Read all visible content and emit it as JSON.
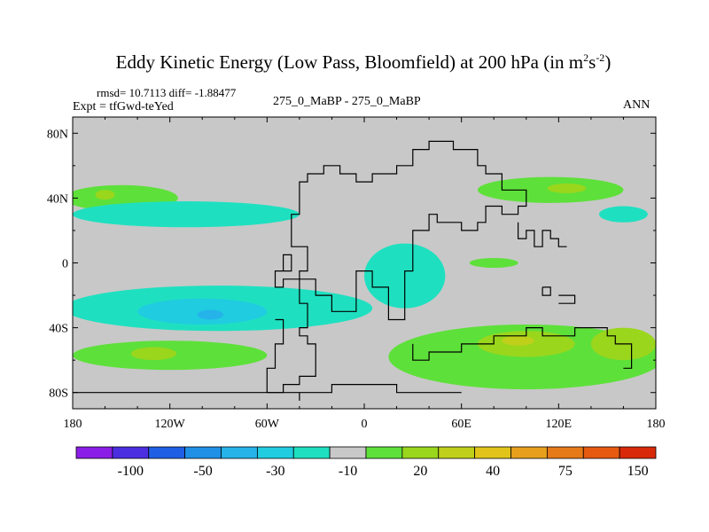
{
  "chart_data": {
    "type": "heatmap",
    "title": "Eddy Kinetic Energy (Low Pass, Bloomfield) at 200 hPa (in m",
    "title_sup1": "2",
    "title_mid": "s",
    "title_sup2": "-2",
    "title_end": ")",
    "stats": "rmsd= 10.7113 diff= -1.88477",
    "expt": "Expt = tfGwd-teYed",
    "case_label": "275_0_MaBP - 275_0_MaBP",
    "period": "ANN",
    "x_ticks": [
      "180",
      "120W",
      "60W",
      "0",
      "60E",
      "120E",
      "180"
    ],
    "x_tick_values": [
      -180,
      -120,
      -60,
      0,
      60,
      120,
      180
    ],
    "y_ticks": [
      "80N",
      "40N",
      "0",
      "40S",
      "80S"
    ],
    "y_tick_values": [
      80,
      40,
      0,
      -40,
      -80
    ],
    "xlim": [
      -180,
      180
    ],
    "ylim": [
      -90,
      90
    ],
    "colorbar": {
      "colors": [
        "#8a1ee6",
        "#4b2ee0",
        "#1f5fe6",
        "#1f90e6",
        "#25b3ea",
        "#20cce0",
        "#1ee0c0",
        "#c8c8c8",
        "#5ee03a",
        "#9ad61c",
        "#c0d01a",
        "#e0c41a",
        "#e6a01c",
        "#e67a18",
        "#e65a10",
        "#d82a0a"
      ],
      "labels": [
        "-100",
        "-50",
        "-30",
        "-10",
        "20",
        "40",
        "75",
        "150"
      ],
      "label_boundary_index": [
        2,
        4,
        6,
        8,
        10,
        12,
        14,
        16
      ]
    },
    "anomaly_regions": [
      {
        "cx": -150,
        "cy": 40,
        "rx": 35,
        "ry": 8,
        "level": 8
      },
      {
        "cx": -160,
        "cy": 42,
        "rx": 6,
        "ry": 3,
        "level": 9
      },
      {
        "cx": -110,
        "cy": 30,
        "rx": 70,
        "ry": 8,
        "level": 6
      },
      {
        "cx": -90,
        "cy": -28,
        "rx": 95,
        "ry": 14,
        "level": 6
      },
      {
        "cx": -100,
        "cy": -30,
        "rx": 40,
        "ry": 8,
        "level": 5
      },
      {
        "cx": -95,
        "cy": -32,
        "rx": 8,
        "ry": 3,
        "level": 4
      },
      {
        "cx": -120,
        "cy": -57,
        "rx": 60,
        "ry": 9,
        "level": 8
      },
      {
        "cx": -130,
        "cy": -56,
        "rx": 14,
        "ry": 4,
        "level": 9
      },
      {
        "cx": 25,
        "cy": -8,
        "rx": 25,
        "ry": 20,
        "level": 6
      },
      {
        "cx": 80,
        "cy": 0,
        "rx": 15,
        "ry": 3,
        "level": 8
      },
      {
        "cx": 115,
        "cy": 45,
        "rx": 45,
        "ry": 8,
        "level": 8
      },
      {
        "cx": 125,
        "cy": 46,
        "rx": 12,
        "ry": 3,
        "level": 9
      },
      {
        "cx": 160,
        "cy": 30,
        "rx": 15,
        "ry": 5,
        "level": 6
      },
      {
        "cx": 100,
        "cy": -58,
        "rx": 85,
        "ry": 20,
        "level": 8
      },
      {
        "cx": 100,
        "cy": -50,
        "rx": 30,
        "ry": 8,
        "level": 9
      },
      {
        "cx": 95,
        "cy": -48,
        "rx": 10,
        "ry": 3,
        "level": 10
      },
      {
        "cx": 160,
        "cy": -50,
        "rx": 20,
        "ry": 10,
        "level": 9
      }
    ],
    "coastlines": [
      [
        [
          -60,
          -80
        ],
        [
          -50,
          -80
        ],
        [
          -50,
          -75
        ],
        [
          -40,
          -75
        ],
        [
          -40,
          -70
        ],
        [
          -30,
          -70
        ],
        [
          -30,
          -50
        ],
        [
          -35,
          -50
        ],
        [
          -35,
          -45
        ],
        [
          -40,
          -45
        ],
        [
          -40,
          -40
        ],
        [
          -35,
          -40
        ],
        [
          -35,
          -25
        ],
        [
          -40,
          -25
        ],
        [
          -40,
          -5
        ],
        [
          -35,
          -5
        ],
        [
          -35,
          10
        ],
        [
          -45,
          10
        ],
        [
          -45,
          30
        ],
        [
          -40,
          30
        ],
        [
          -40,
          50
        ],
        [
          -35,
          50
        ],
        [
          -35,
          55
        ],
        [
          -25,
          55
        ],
        [
          -25,
          60
        ],
        [
          -15,
          60
        ],
        [
          -15,
          55
        ],
        [
          -5,
          55
        ],
        [
          -5,
          50
        ],
        [
          5,
          50
        ],
        [
          5,
          55
        ],
        [
          20,
          55
        ],
        [
          20,
          60
        ],
        [
          30,
          60
        ],
        [
          30,
          70
        ],
        [
          40,
          70
        ],
        [
          40,
          75
        ],
        [
          55,
          75
        ],
        [
          55,
          70
        ],
        [
          70,
          70
        ],
        [
          70,
          60
        ],
        [
          75,
          60
        ],
        [
          75,
          55
        ],
        [
          85,
          55
        ],
        [
          85,
          45
        ],
        [
          100,
          45
        ],
        [
          100,
          35
        ],
        [
          95,
          35
        ],
        [
          95,
          30
        ],
        [
          85,
          30
        ],
        [
          85,
          35
        ],
        [
          75,
          35
        ],
        [
          75,
          25
        ],
        [
          70,
          25
        ],
        [
          70,
          20
        ],
        [
          60,
          20
        ],
        [
          60,
          25
        ],
        [
          45,
          25
        ],
        [
          45,
          30
        ],
        [
          40,
          30
        ],
        [
          40,
          20
        ],
        [
          30,
          20
        ],
        [
          30,
          -5
        ],
        [
          25,
          -5
        ],
        [
          25,
          -35
        ],
        [
          15,
          -35
        ],
        [
          15,
          -15
        ],
        [
          5,
          -15
        ],
        [
          5,
          -5
        ],
        [
          -5,
          -5
        ],
        [
          -5,
          -30
        ],
        [
          -20,
          -30
        ],
        [
          -20,
          -20
        ],
        [
          -30,
          -20
        ],
        [
          -30,
          -10
        ],
        [
          -50,
          -10
        ],
        [
          -50,
          -15
        ],
        [
          -55,
          -15
        ],
        [
          -55,
          -5
        ],
        [
          -50,
          -5
        ],
        [
          -50,
          5
        ],
        [
          -45,
          5
        ],
        [
          -45,
          -5
        ],
        [
          -55,
          -5
        ]
      ],
      [
        [
          -55,
          -35
        ],
        [
          -50,
          -35
        ],
        [
          -50,
          -50
        ],
        [
          -55,
          -50
        ],
        [
          -55,
          -65
        ],
        [
          -60,
          -65
        ],
        [
          -60,
          -80
        ]
      ],
      [
        [
          30,
          -50
        ],
        [
          30,
          -60
        ],
        [
          40,
          -60
        ],
        [
          40,
          -55
        ],
        [
          60,
          -55
        ],
        [
          60,
          -50
        ],
        [
          80,
          -50
        ],
        [
          80,
          -45
        ],
        [
          100,
          -45
        ],
        [
          100,
          -40
        ],
        [
          110,
          -40
        ],
        [
          110,
          -45
        ],
        [
          130,
          -45
        ],
        [
          130,
          -40
        ],
        [
          150,
          -40
        ],
        [
          150,
          -45
        ],
        [
          155,
          -45
        ],
        [
          155,
          -50
        ],
        [
          165,
          -50
        ],
        [
          165,
          -65
        ],
        [
          160,
          -65
        ]
      ],
      [
        [
          95,
          25
        ],
        [
          95,
          15
        ],
        [
          100,
          15
        ],
        [
          100,
          20
        ],
        [
          105,
          20
        ],
        [
          105,
          10
        ],
        [
          110,
          10
        ],
        [
          110,
          20
        ],
        [
          115,
          20
        ],
        [
          115,
          15
        ],
        [
          120,
          15
        ],
        [
          120,
          10
        ],
        [
          125,
          10
        ]
      ],
      [
        [
          -180,
          -80
        ],
        [
          -120,
          -80
        ],
        [
          -60,
          -80
        ],
        [
          -20,
          -80
        ],
        [
          -20,
          -75
        ],
        [
          20,
          -75
        ],
        [
          20,
          -80
        ],
        [
          60,
          -80
        ]
      ],
      [
        [
          -40,
          -85
        ],
        [
          -40,
          -80
        ]
      ],
      [
        [
          110,
          -15
        ],
        [
          115,
          -15
        ],
        [
          115,
          -20
        ],
        [
          110,
          -20
        ],
        [
          110,
          -15
        ]
      ],
      [
        [
          120,
          -20
        ],
        [
          130,
          -20
        ],
        [
          130,
          -25
        ],
        [
          120,
          -25
        ]
      ]
    ]
  }
}
